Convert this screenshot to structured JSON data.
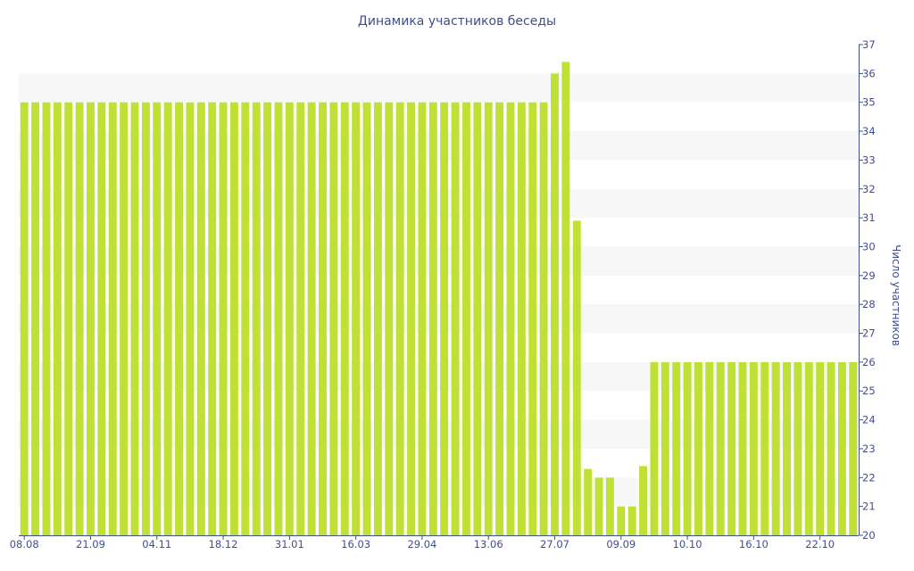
{
  "colors": {
    "bar": "#bfe034",
    "text": "#3f4f8c",
    "band": "#f7f7f7",
    "axis": "#3f4f8c",
    "background": "#ffffff"
  },
  "chart_data": {
    "type": "bar",
    "title": "Динамика участников беседы",
    "xlabel": "",
    "ylabel": "Число участников",
    "ylim": [
      20,
      37
    ],
    "y_ticks": [
      20,
      21,
      22,
      23,
      24,
      25,
      26,
      27,
      28,
      29,
      30,
      31,
      32,
      33,
      34,
      35,
      36,
      37
    ],
    "y_axis_side": "right",
    "grid": "alternating horizontal bands",
    "x_tick_labels": [
      "08.08",
      "21.09",
      "04.11",
      "18.12",
      "31.01",
      "16.03",
      "29.04",
      "13.06",
      "27.07",
      "09.09",
      "10.10",
      "16.10",
      "22.10"
    ],
    "x_tick_positions": [
      0,
      6,
      12,
      18,
      24,
      30,
      36,
      42,
      48,
      54,
      60,
      66,
      72
    ],
    "values": [
      35,
      35,
      35,
      35,
      35,
      35,
      35,
      35,
      35,
      35,
      35,
      35,
      35,
      35,
      35,
      35,
      35,
      35,
      35,
      35,
      35,
      35,
      35,
      35,
      35,
      35,
      35,
      35,
      35,
      35,
      35,
      35,
      35,
      35,
      35,
      35,
      35,
      35,
      35,
      35,
      35,
      35,
      35,
      35,
      35,
      35,
      35,
      35,
      36,
      36.4,
      30.9,
      22.3,
      22,
      22,
      21,
      21,
      22.4,
      26,
      26,
      26,
      26,
      26,
      26,
      26,
      26,
      26,
      26,
      26,
      26,
      26,
      26,
      26,
      26,
      26,
      26,
      26
    ]
  }
}
